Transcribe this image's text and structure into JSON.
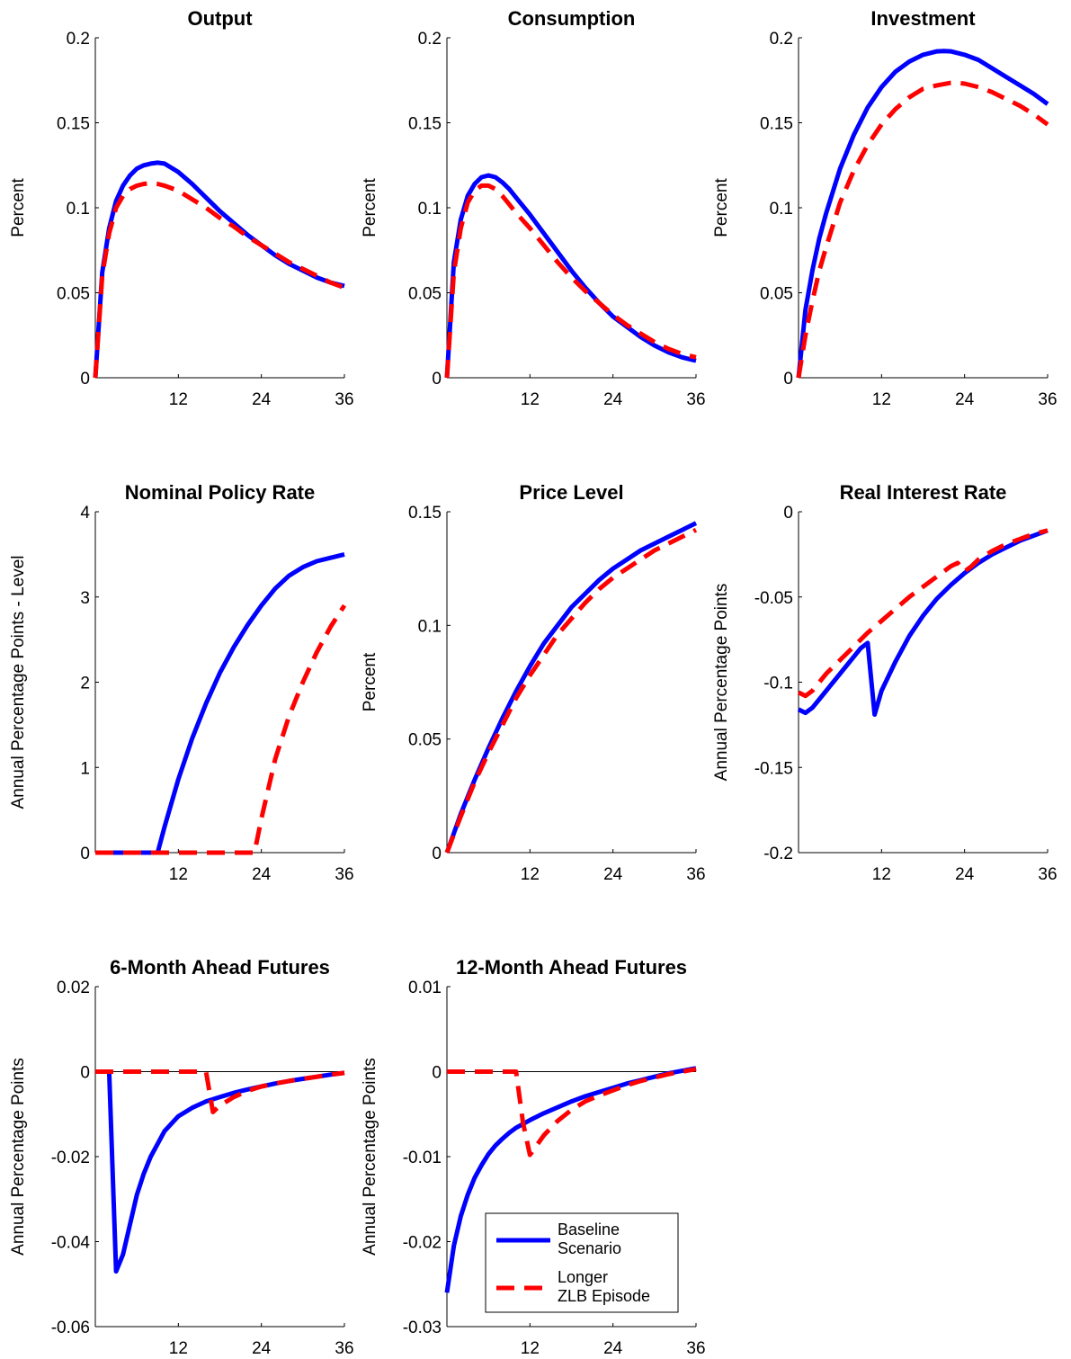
{
  "legend": {
    "location": "inside lower-right of 12-Month Ahead Futures panel",
    "entries": [
      {
        "line1": "Baseline",
        "line2": "Scenario",
        "color": "#0000ff",
        "style": "solid"
      },
      {
        "line1": "Longer",
        "line2": "ZLB Episode",
        "color": "#ff0000",
        "style": "dashed"
      }
    ]
  },
  "chart_data": [
    {
      "type": "line",
      "title": "Output",
      "ylabel": "Percent",
      "xlabel": "",
      "xlim": [
        0,
        36
      ],
      "ylim": [
        0,
        0.2
      ],
      "xticks": [
        12,
        24,
        36
      ],
      "xtick_labels": [
        "12",
        "24",
        "36"
      ],
      "yticks": [
        0,
        0.05,
        0.1,
        0.15,
        0.2
      ],
      "ytick_labels": [
        "0",
        "0.05",
        "0.1",
        "0.15",
        "0.2"
      ],
      "zero_line": false,
      "series": [
        {
          "color": "#0000ff",
          "style": "solid",
          "x": [
            0,
            1,
            2,
            3,
            4,
            5,
            6,
            7,
            8,
            9,
            10,
            12,
            14,
            16,
            18,
            20,
            22,
            24,
            26,
            28,
            30,
            32,
            34,
            36
          ],
          "y": [
            0,
            0.062,
            0.088,
            0.104,
            0.113,
            0.119,
            0.123,
            0.125,
            0.126,
            0.1265,
            0.126,
            0.121,
            0.114,
            0.106,
            0.098,
            0.091,
            0.084,
            0.078,
            0.072,
            0.067,
            0.063,
            0.059,
            0.056,
            0.054
          ]
        },
        {
          "color": "#ff0000",
          "style": "dashed",
          "x": [
            0,
            1,
            2,
            3,
            4,
            5,
            6,
            7,
            8,
            9,
            10,
            12,
            14,
            16,
            18,
            20,
            22,
            24,
            26,
            28,
            30,
            32,
            34,
            36
          ],
          "y": [
            0,
            0.06,
            0.085,
            0.1,
            0.107,
            0.111,
            0.113,
            0.114,
            0.1145,
            0.114,
            0.113,
            0.11,
            0.105,
            0.1,
            0.094,
            0.089,
            0.083,
            0.078,
            0.073,
            0.068,
            0.064,
            0.06,
            0.056,
            0.053
          ]
        }
      ]
    },
    {
      "type": "line",
      "title": "Consumption",
      "ylabel": "Percent",
      "xlabel": "",
      "xlim": [
        0,
        36
      ],
      "ylim": [
        0,
        0.2
      ],
      "xticks": [
        12,
        24,
        36
      ],
      "xtick_labels": [
        "12",
        "24",
        "36"
      ],
      "yticks": [
        0,
        0.05,
        0.1,
        0.15,
        0.2
      ],
      "ytick_labels": [
        "0",
        "0.05",
        "0.1",
        "0.15",
        "0.2"
      ],
      "zero_line": false,
      "series": [
        {
          "color": "#0000ff",
          "style": "solid",
          "x": [
            0,
            1,
            2,
            3,
            4,
            5,
            6,
            7,
            8,
            9,
            10,
            12,
            14,
            16,
            18,
            20,
            22,
            24,
            26,
            28,
            30,
            32,
            34,
            36
          ],
          "y": [
            0,
            0.068,
            0.093,
            0.107,
            0.114,
            0.118,
            0.119,
            0.118,
            0.115,
            0.111,
            0.106,
            0.096,
            0.085,
            0.074,
            0.063,
            0.053,
            0.044,
            0.036,
            0.03,
            0.024,
            0.019,
            0.015,
            0.012,
            0.01
          ]
        },
        {
          "color": "#ff0000",
          "style": "dashed",
          "x": [
            0,
            1,
            2,
            3,
            4,
            5,
            6,
            7,
            8,
            9,
            10,
            12,
            14,
            16,
            18,
            20,
            22,
            24,
            26,
            28,
            30,
            32,
            34,
            36
          ],
          "y": [
            0,
            0.062,
            0.088,
            0.103,
            0.11,
            0.113,
            0.113,
            0.111,
            0.107,
            0.102,
            0.097,
            0.088,
            0.078,
            0.068,
            0.059,
            0.051,
            0.044,
            0.037,
            0.031,
            0.026,
            0.021,
            0.017,
            0.014,
            0.012
          ]
        }
      ]
    },
    {
      "type": "line",
      "title": "Investment",
      "ylabel": "Percent",
      "xlabel": "",
      "xlim": [
        0,
        36
      ],
      "ylim": [
        0,
        0.2
      ],
      "xticks": [
        12,
        24,
        36
      ],
      "xtick_labels": [
        "12",
        "24",
        "36"
      ],
      "yticks": [
        0,
        0.05,
        0.1,
        0.15,
        0.2
      ],
      "ytick_labels": [
        "0",
        "0.05",
        "0.1",
        "0.15",
        "0.2"
      ],
      "zero_line": false,
      "series": [
        {
          "color": "#0000ff",
          "style": "solid",
          "x": [
            0,
            1,
            2,
            3,
            4,
            6,
            8,
            10,
            12,
            14,
            16,
            18,
            20,
            21,
            22,
            24,
            26,
            28,
            30,
            32,
            34,
            36
          ],
          "y": [
            0,
            0.04,
            0.063,
            0.082,
            0.097,
            0.123,
            0.143,
            0.159,
            0.171,
            0.18,
            0.186,
            0.19,
            0.192,
            0.1922,
            0.192,
            0.19,
            0.187,
            0.182,
            0.177,
            0.172,
            0.167,
            0.161
          ]
        },
        {
          "color": "#ff0000",
          "style": "dashed",
          "x": [
            0,
            1,
            2,
            3,
            4,
            6,
            8,
            10,
            12,
            14,
            16,
            18,
            20,
            22,
            23,
            24,
            26,
            28,
            30,
            32,
            34,
            36
          ],
          "y": [
            0,
            0.025,
            0.045,
            0.063,
            0.077,
            0.103,
            0.122,
            0.137,
            0.149,
            0.158,
            0.165,
            0.17,
            0.172,
            0.1735,
            0.1735,
            0.173,
            0.171,
            0.168,
            0.164,
            0.16,
            0.155,
            0.149
          ]
        }
      ]
    },
    {
      "type": "line",
      "title": "Nominal Policy Rate",
      "ylabel": "Annual Percentage Points - Level",
      "xlabel": "",
      "xlim": [
        0,
        36
      ],
      "ylim": [
        0,
        4
      ],
      "xticks": [
        12,
        24,
        36
      ],
      "xtick_labels": [
        "12",
        "24",
        "36"
      ],
      "yticks": [
        0,
        1,
        2,
        3,
        4
      ],
      "ytick_labels": [
        "0",
        "1",
        "2",
        "3",
        "4"
      ],
      "zero_line": false,
      "series": [
        {
          "color": "#0000ff",
          "style": "solid",
          "x": [
            0,
            9,
            10,
            12,
            14,
            16,
            18,
            20,
            22,
            24,
            26,
            28,
            30,
            32,
            34,
            36
          ],
          "y": [
            0,
            0,
            0.3,
            0.86,
            1.34,
            1.75,
            2.11,
            2.41,
            2.67,
            2.9,
            3.1,
            3.25,
            3.35,
            3.42,
            3.46,
            3.5
          ]
        },
        {
          "color": "#ff0000",
          "style": "dashed",
          "x": [
            0,
            23,
            24,
            26,
            28,
            30,
            32,
            34,
            36
          ],
          "y": [
            0,
            0,
            0.4,
            1.1,
            1.6,
            2.0,
            2.35,
            2.65,
            2.9
          ]
        }
      ]
    },
    {
      "type": "line",
      "title": "Price Level",
      "ylabel": "Percent",
      "xlabel": "",
      "xlim": [
        0,
        36
      ],
      "ylim": [
        0,
        0.15
      ],
      "xticks": [
        12,
        24,
        36
      ],
      "xtick_labels": [
        "12",
        "24",
        "36"
      ],
      "yticks": [
        0,
        0.05,
        0.1,
        0.15
      ],
      "ytick_labels": [
        "0",
        "0.05",
        "0.1",
        "0.15"
      ],
      "zero_line": false,
      "series": [
        {
          "color": "#0000ff",
          "style": "solid",
          "x": [
            0,
            2,
            4,
            6,
            8,
            10,
            12,
            14,
            16,
            18,
            20,
            22,
            24,
            26,
            28,
            30,
            32,
            34,
            36
          ],
          "y": [
            0,
            0.017,
            0.032,
            0.046,
            0.059,
            0.071,
            0.082,
            0.092,
            0.1,
            0.108,
            0.114,
            0.12,
            0.125,
            0.129,
            0.133,
            0.136,
            0.139,
            0.142,
            0.145
          ]
        },
        {
          "color": "#ff0000",
          "style": "dashed",
          "x": [
            0,
            2,
            4,
            6,
            8,
            10,
            12,
            14,
            16,
            18,
            20,
            22,
            24,
            26,
            28,
            30,
            32,
            34,
            36
          ],
          "y": [
            0,
            0.016,
            0.031,
            0.044,
            0.056,
            0.068,
            0.078,
            0.087,
            0.096,
            0.103,
            0.11,
            0.116,
            0.121,
            0.125,
            0.129,
            0.133,
            0.136,
            0.139,
            0.142
          ]
        }
      ]
    },
    {
      "type": "line",
      "title": "Real Interest Rate",
      "ylabel": "Annual Percentage Points",
      "xlabel": "",
      "xlim": [
        0,
        36
      ],
      "ylim": [
        -0.2,
        0
      ],
      "xticks": [
        12,
        24,
        36
      ],
      "xtick_labels": [
        "12",
        "24",
        "36"
      ],
      "yticks": [
        -0.2,
        -0.15,
        -0.1,
        -0.05,
        0
      ],
      "ytick_labels": [
        "-0.2",
        "-0.15",
        "-0.1",
        "-0.05",
        "0"
      ],
      "zero_line": false,
      "series": [
        {
          "color": "#0000ff",
          "style": "solid",
          "x": [
            0,
            1,
            2,
            3,
            4,
            5,
            6,
            7,
            8,
            9,
            10,
            11,
            12,
            14,
            16,
            18,
            20,
            22,
            24,
            26,
            28,
            30,
            32,
            34,
            36
          ],
          "y": [
            -0.116,
            -0.118,
            -0.115,
            -0.11,
            -0.105,
            -0.1,
            -0.095,
            -0.09,
            -0.085,
            -0.08,
            -0.077,
            -0.119,
            -0.105,
            -0.088,
            -0.073,
            -0.061,
            -0.051,
            -0.043,
            -0.036,
            -0.03,
            -0.025,
            -0.021,
            -0.017,
            -0.014,
            -0.011
          ]
        },
        {
          "color": "#ff0000",
          "style": "dashed",
          "x": [
            0,
            1,
            2,
            3,
            4,
            6,
            8,
            10,
            12,
            14,
            16,
            18,
            20,
            22,
            23,
            24,
            25,
            26,
            28,
            30,
            32,
            34,
            36
          ],
          "y": [
            -0.106,
            -0.108,
            -0.105,
            -0.1,
            -0.095,
            -0.087,
            -0.079,
            -0.071,
            -0.064,
            -0.057,
            -0.05,
            -0.044,
            -0.038,
            -0.032,
            -0.03,
            -0.035,
            -0.032,
            -0.028,
            -0.023,
            -0.019,
            -0.016,
            -0.013,
            -0.011
          ]
        }
      ]
    },
    {
      "type": "line",
      "title": "6-Month Ahead Futures",
      "ylabel": "Annual Percentage Points",
      "xlabel": "",
      "xlim": [
        0,
        36
      ],
      "ylim": [
        -0.06,
        0.02
      ],
      "xticks": [
        12,
        24,
        36
      ],
      "xtick_labels": [
        "12",
        "24",
        "36"
      ],
      "yticks": [
        -0.06,
        -0.04,
        -0.02,
        0,
        0.02
      ],
      "ytick_labels": [
        "-0.06",
        "-0.04",
        "-0.02",
        "0",
        "0.02"
      ],
      "zero_line": true,
      "series": [
        {
          "color": "#0000ff",
          "style": "solid",
          "x": [
            0,
            2,
            3,
            4,
            5,
            6,
            7,
            8,
            9,
            10,
            12,
            14,
            16,
            18,
            20,
            22,
            24,
            26,
            28,
            30,
            32,
            34,
            36
          ],
          "y": [
            0,
            0,
            -0.047,
            -0.043,
            -0.036,
            -0.029,
            -0.024,
            -0.02,
            -0.017,
            -0.014,
            -0.0105,
            -0.0085,
            -0.007,
            -0.006,
            -0.005,
            -0.0042,
            -0.0035,
            -0.0028,
            -0.0022,
            -0.0017,
            -0.0012,
            -0.0007,
            -0.0003
          ]
        },
        {
          "color": "#ff0000",
          "style": "dashed",
          "x": [
            0,
            16,
            17,
            18,
            20,
            22,
            24,
            26,
            28,
            30,
            32,
            34,
            36
          ],
          "y": [
            0,
            0,
            -0.0095,
            -0.008,
            -0.006,
            -0.0045,
            -0.0035,
            -0.0028,
            -0.0022,
            -0.0017,
            -0.0012,
            -0.0007,
            -0.0003
          ]
        }
      ]
    },
    {
      "type": "line",
      "title": "12-Month Ahead Futures",
      "ylabel": "Annual Percentage Points",
      "xlabel": "",
      "xlim": [
        0,
        36
      ],
      "ylim": [
        -0.03,
        0.01
      ],
      "xticks": [
        12,
        24,
        36
      ],
      "xtick_labels": [
        "12",
        "24",
        "36"
      ],
      "yticks": [
        -0.03,
        -0.02,
        -0.01,
        0,
        0.01
      ],
      "ytick_labels": [
        "-0.03",
        "-0.02",
        "-0.01",
        "0",
        "0.01"
      ],
      "zero_line": true,
      "series": [
        {
          "color": "#0000ff",
          "style": "solid",
          "x": [
            0,
            1,
            2,
            3,
            4,
            5,
            6,
            7,
            8,
            9,
            10,
            12,
            14,
            16,
            18,
            20,
            22,
            24,
            26,
            28,
            30,
            32,
            34,
            36
          ],
          "y": [
            -0.026,
            -0.0205,
            -0.017,
            -0.0145,
            -0.0125,
            -0.011,
            -0.0097,
            -0.0087,
            -0.0079,
            -0.0072,
            -0.0066,
            -0.0057,
            -0.0049,
            -0.0042,
            -0.0035,
            -0.0029,
            -0.0024,
            -0.0019,
            -0.0014,
            -0.001,
            -0.0006,
            -0.0002,
            0.0001,
            0.0004
          ]
        },
        {
          "color": "#ff0000",
          "style": "dashed",
          "x": [
            0,
            10,
            11,
            12,
            14,
            16,
            18,
            20,
            22,
            24,
            26,
            28,
            30,
            32,
            34,
            36
          ],
          "y": [
            0,
            0,
            -0.006,
            -0.0098,
            -0.0075,
            -0.0058,
            -0.0045,
            -0.0035,
            -0.0028,
            -0.0022,
            -0.0016,
            -0.0011,
            -0.0007,
            -0.0003,
            0,
            0.0003
          ]
        }
      ]
    }
  ]
}
